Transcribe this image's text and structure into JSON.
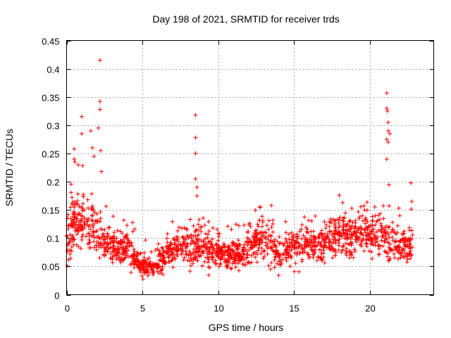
{
  "chart_data": {
    "type": "scatter",
    "title": "Day 198 of 2021, SRMTID for receiver trds",
    "xlabel": "GPS time / hours",
    "ylabel": "SRMTID / TECUs",
    "xlim": [
      0,
      24.2
    ],
    "ylim": [
      0,
      0.45
    ],
    "xticks": [
      0,
      5,
      10,
      15,
      20
    ],
    "xtick_labels": [
      "0",
      "5",
      "10",
      "15",
      "20"
    ],
    "yticks": [
      0,
      0.05,
      0.1,
      0.15,
      0.2,
      0.25,
      0.3,
      0.35,
      0.4,
      0.45
    ],
    "ytick_labels": [
      "0",
      "0.05",
      "0.1",
      "0.15",
      "0.2",
      "0.25",
      "0.3",
      "0.35",
      "0.4",
      "0.45"
    ],
    "grid": true,
    "marker": "+",
    "color": "#ff0000",
    "profile": [
      [
        0.0,
        0.085,
        0.03
      ],
      [
        0.5,
        0.13,
        0.04
      ],
      [
        1.0,
        0.13,
        0.045
      ],
      [
        1.5,
        0.13,
        0.04
      ],
      [
        2.0,
        0.11,
        0.035
      ],
      [
        2.5,
        0.09,
        0.025
      ],
      [
        3.0,
        0.085,
        0.025
      ],
      [
        3.5,
        0.085,
        0.025
      ],
      [
        4.0,
        0.09,
        0.025
      ],
      [
        4.5,
        0.06,
        0.02
      ],
      [
        5.0,
        0.05,
        0.015
      ],
      [
        5.5,
        0.05,
        0.015
      ],
      [
        6.0,
        0.055,
        0.02
      ],
      [
        6.5,
        0.07,
        0.02
      ],
      [
        7.0,
        0.085,
        0.025
      ],
      [
        7.5,
        0.085,
        0.025
      ],
      [
        8.0,
        0.085,
        0.025
      ],
      [
        8.5,
        0.09,
        0.03
      ],
      [
        9.0,
        0.085,
        0.025
      ],
      [
        9.5,
        0.08,
        0.025
      ],
      [
        10.0,
        0.075,
        0.02
      ],
      [
        10.5,
        0.07,
        0.02
      ],
      [
        11.0,
        0.07,
        0.02
      ],
      [
        11.5,
        0.07,
        0.02
      ],
      [
        12.0,
        0.085,
        0.025
      ],
      [
        12.5,
        0.095,
        0.025
      ],
      [
        13.0,
        0.1,
        0.03
      ],
      [
        13.5,
        0.09,
        0.03
      ],
      [
        14.0,
        0.07,
        0.02
      ],
      [
        14.5,
        0.08,
        0.025
      ],
      [
        15.0,
        0.09,
        0.03
      ],
      [
        15.5,
        0.09,
        0.03
      ],
      [
        16.0,
        0.085,
        0.025
      ],
      [
        16.5,
        0.09,
        0.03
      ],
      [
        17.0,
        0.095,
        0.03
      ],
      [
        17.5,
        0.1,
        0.03
      ],
      [
        18.0,
        0.11,
        0.03
      ],
      [
        18.5,
        0.1,
        0.03
      ],
      [
        19.0,
        0.1,
        0.03
      ],
      [
        19.5,
        0.115,
        0.03
      ],
      [
        20.0,
        0.11,
        0.03
      ],
      [
        20.5,
        0.1,
        0.03
      ],
      [
        21.0,
        0.1,
        0.035
      ],
      [
        21.5,
        0.09,
        0.03
      ],
      [
        22.0,
        0.085,
        0.025
      ],
      [
        22.5,
        0.085,
        0.025
      ],
      [
        22.8,
        0.085,
        0.025
      ]
    ],
    "spikes": [
      [
        0.5,
        0.258
      ],
      [
        0.5,
        0.24
      ],
      [
        0.55,
        0.235
      ],
      [
        1.0,
        0.315
      ],
      [
        1.0,
        0.285
      ],
      [
        1.6,
        0.29
      ],
      [
        1.7,
        0.26
      ],
      [
        1.8,
        0.245
      ],
      [
        2.1,
        0.295
      ],
      [
        2.2,
        0.342
      ],
      [
        2.2,
        0.328
      ],
      [
        2.2,
        0.415
      ],
      [
        2.25,
        0.255
      ],
      [
        2.3,
        0.218
      ],
      [
        8.5,
        0.318
      ],
      [
        8.5,
        0.278
      ],
      [
        8.5,
        0.25
      ],
      [
        8.5,
        0.205
      ],
      [
        8.6,
        0.19
      ],
      [
        8.6,
        0.175
      ],
      [
        21.1,
        0.357
      ],
      [
        21.1,
        0.33
      ],
      [
        21.15,
        0.325
      ],
      [
        21.2,
        0.305
      ],
      [
        21.2,
        0.29
      ],
      [
        21.3,
        0.285
      ],
      [
        21.1,
        0.275
      ],
      [
        21.2,
        0.27
      ],
      [
        21.1,
        0.24
      ],
      [
        22.7,
        0.198
      ],
      [
        22.75,
        0.165
      ]
    ],
    "time_range": [
      0.0,
      22.8
    ],
    "n_points": 1850
  }
}
